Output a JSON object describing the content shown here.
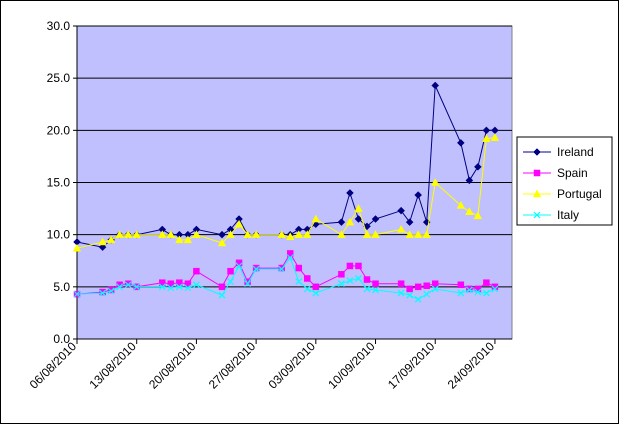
{
  "chart_data": {
    "type": "line",
    "title": "",
    "xlabel": "",
    "ylabel": "",
    "ylim": [
      0,
      30
    ],
    "y_ticks": [
      "0.0",
      "5.0",
      "10.0",
      "15.0",
      "20.0",
      "25.0",
      "30.0"
    ],
    "x_ticks": [
      "06/08/2010",
      "13/08/2010",
      "20/08/2010",
      "27/08/2010",
      "03/09/2010",
      "10/09/2010",
      "17/09/2010",
      "24/09/2010"
    ],
    "xlim": [
      "2010-08-06",
      "2010-09-26"
    ],
    "grid": "horizontal",
    "legend_position": "right",
    "plot_background": "#c0c0ff",
    "series": [
      {
        "name": "Ireland",
        "color": "#000080",
        "marker": "diamond",
        "x": [
          "2010-08-06",
          "2010-08-09",
          "2010-08-10",
          "2010-08-11",
          "2010-08-12",
          "2010-08-13",
          "2010-08-16",
          "2010-08-17",
          "2010-08-18",
          "2010-08-19",
          "2010-08-20",
          "2010-08-23",
          "2010-08-24",
          "2010-08-25",
          "2010-08-26",
          "2010-08-27",
          "2010-08-30",
          "2010-08-31",
          "2010-09-01",
          "2010-09-02",
          "2010-09-03",
          "2010-09-06",
          "2010-09-07",
          "2010-09-08",
          "2010-09-09",
          "2010-09-10",
          "2010-09-13",
          "2010-09-14",
          "2010-09-15",
          "2010-09-16",
          "2010-09-17",
          "2010-09-20",
          "2010-09-21",
          "2010-09-22",
          "2010-09-23",
          "2010-09-24"
        ],
        "values": [
          9.3,
          8.8,
          9.5,
          10.0,
          10.0,
          10.0,
          10.5,
          10.0,
          10.0,
          10.0,
          10.5,
          10.0,
          10.5,
          11.5,
          10.0,
          10.0,
          10.0,
          10.0,
          10.5,
          10.5,
          11.0,
          11.2,
          14.0,
          11.5,
          10.8,
          11.5,
          12.3,
          11.2,
          13.8,
          11.2,
          24.3,
          18.8,
          15.2,
          16.5,
          20.0,
          20.0
        ]
      },
      {
        "name": "Spain",
        "color": "#ff00ff",
        "marker": "square",
        "x": [
          "2010-08-06",
          "2010-08-09",
          "2010-08-10",
          "2010-08-11",
          "2010-08-12",
          "2010-08-13",
          "2010-08-16",
          "2010-08-17",
          "2010-08-18",
          "2010-08-19",
          "2010-08-20",
          "2010-08-23",
          "2010-08-24",
          "2010-08-25",
          "2010-08-26",
          "2010-08-27",
          "2010-08-30",
          "2010-08-31",
          "2010-09-01",
          "2010-09-02",
          "2010-09-03",
          "2010-09-06",
          "2010-09-07",
          "2010-09-08",
          "2010-09-09",
          "2010-09-10",
          "2010-09-13",
          "2010-09-14",
          "2010-09-15",
          "2010-09-16",
          "2010-09-17",
          "2010-09-20",
          "2010-09-21",
          "2010-09-22",
          "2010-09-23",
          "2010-09-24"
        ],
        "values": [
          4.3,
          4.5,
          4.7,
          5.2,
          5.3,
          5.0,
          5.4,
          5.3,
          5.4,
          5.3,
          6.5,
          5.0,
          6.5,
          7.3,
          5.5,
          6.8,
          6.8,
          8.2,
          6.8,
          5.8,
          5.0,
          6.2,
          7.0,
          7.0,
          5.7,
          5.3,
          5.3,
          4.8,
          5.0,
          5.1,
          5.3,
          5.2,
          4.8,
          4.8,
          5.4,
          5.0
        ]
      },
      {
        "name": "Portugal",
        "color": "#ffff00",
        "marker": "triangle",
        "x": [
          "2010-08-06",
          "2010-08-09",
          "2010-08-10",
          "2010-08-11",
          "2010-08-12",
          "2010-08-13",
          "2010-08-16",
          "2010-08-17",
          "2010-08-18",
          "2010-08-19",
          "2010-08-20",
          "2010-08-23",
          "2010-08-24",
          "2010-08-25",
          "2010-08-26",
          "2010-08-27",
          "2010-08-30",
          "2010-08-31",
          "2010-09-01",
          "2010-09-02",
          "2010-09-03",
          "2010-09-06",
          "2010-09-07",
          "2010-09-08",
          "2010-09-09",
          "2010-09-10",
          "2010-09-13",
          "2010-09-14",
          "2010-09-15",
          "2010-09-16",
          "2010-09-17",
          "2010-09-20",
          "2010-09-21",
          "2010-09-22",
          "2010-09-23",
          "2010-09-24"
        ],
        "values": [
          8.7,
          9.3,
          9.5,
          10.0,
          10.0,
          10.0,
          10.0,
          10.0,
          9.5,
          9.5,
          10.0,
          9.2,
          10.0,
          11.0,
          10.0,
          10.0,
          10.0,
          9.8,
          10.0,
          10.0,
          11.5,
          10.0,
          11.2,
          12.5,
          10.0,
          10.0,
          10.5,
          10.0,
          10.0,
          10.0,
          15.0,
          12.8,
          12.2,
          11.8,
          19.2,
          19.3
        ]
      },
      {
        "name": "Italy",
        "color": "#00ffff",
        "marker": "x",
        "x": [
          "2010-08-06",
          "2010-08-09",
          "2010-08-10",
          "2010-08-11",
          "2010-08-12",
          "2010-08-13",
          "2010-08-16",
          "2010-08-17",
          "2010-08-18",
          "2010-08-19",
          "2010-08-20",
          "2010-08-23",
          "2010-08-24",
          "2010-08-25",
          "2010-08-26",
          "2010-08-27",
          "2010-08-30",
          "2010-08-31",
          "2010-09-01",
          "2010-09-02",
          "2010-09-03",
          "2010-09-06",
          "2010-09-07",
          "2010-09-08",
          "2010-09-09",
          "2010-09-10",
          "2010-09-13",
          "2010-09-14",
          "2010-09-15",
          "2010-09-16",
          "2010-09-17",
          "2010-09-20",
          "2010-09-21",
          "2010-09-22",
          "2010-09-23",
          "2010-09-24"
        ],
        "values": [
          4.3,
          4.4,
          4.6,
          5.0,
          5.2,
          5.0,
          5.0,
          4.9,
          5.0,
          4.9,
          5.2,
          4.2,
          5.5,
          7.0,
          5.3,
          6.7,
          6.7,
          7.8,
          5.5,
          4.8,
          4.4,
          5.3,
          5.6,
          5.8,
          4.8,
          4.7,
          4.4,
          4.2,
          3.8,
          4.3,
          4.8,
          4.4,
          4.7,
          4.5,
          4.4,
          4.8
        ]
      }
    ]
  }
}
